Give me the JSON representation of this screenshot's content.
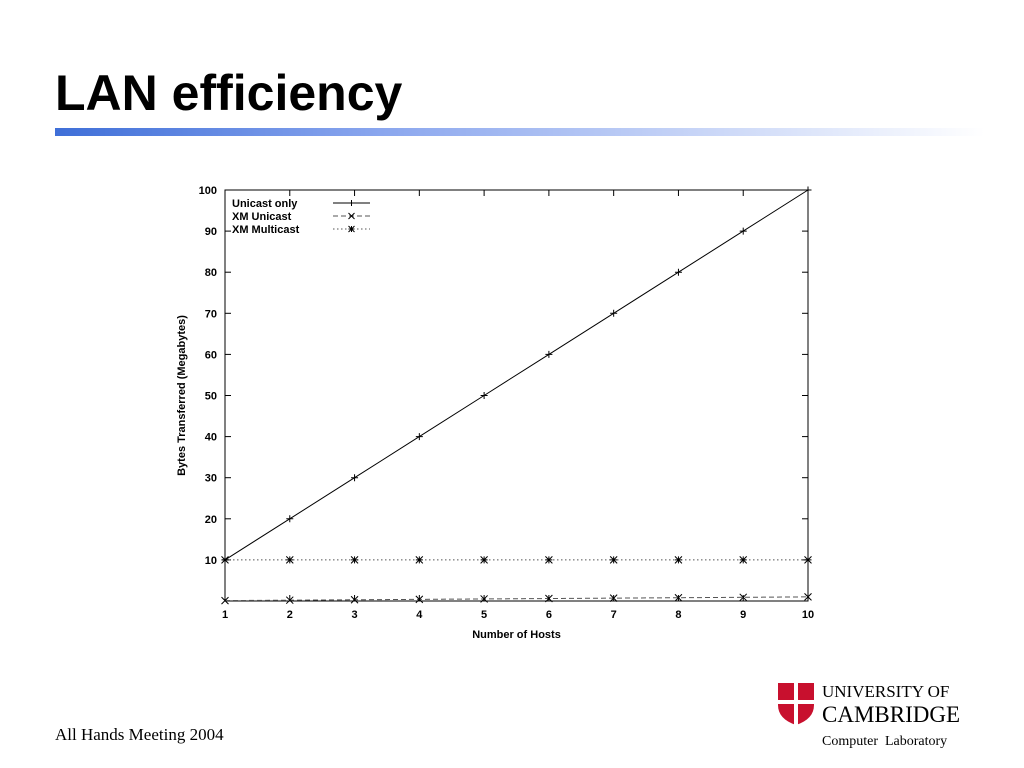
{
  "slide": {
    "title": "LAN efficiency",
    "footer": "All Hands Meeting 2004",
    "logo": [
      "UNIVERSITY OF",
      "CAMBRIDGE",
      "Computer  Laboratory"
    ]
  },
  "chart_data": {
    "type": "line",
    "x_label": "Number of Hosts",
    "y_label": "Bytes Transferred (Megabytes)",
    "x": [
      1,
      2,
      3,
      4,
      5,
      6,
      7,
      8,
      9,
      10
    ],
    "xlim": [
      1,
      10
    ],
    "xticks": [
      1,
      2,
      3,
      4,
      5,
      6,
      7,
      8,
      9,
      10
    ],
    "ylim": [
      0,
      100
    ],
    "yticks": [
      10,
      20,
      30,
      40,
      50,
      60,
      70,
      80,
      90,
      100
    ],
    "legend": "top-left",
    "series": [
      {
        "name": "Unicast only",
        "color": "#000000",
        "dash": "solid",
        "marker": "plus",
        "values": [
          10,
          20,
          30,
          40,
          50,
          60,
          70,
          80,
          90,
          100
        ]
      },
      {
        "name": "XM Unicast",
        "color": "#000000",
        "dash": "dashed",
        "marker": "cross",
        "values": [
          0.1,
          0.2,
          0.3,
          0.4,
          0.5,
          0.6,
          0.7,
          0.8,
          0.9,
          1
        ]
      },
      {
        "name": "XM Multicast",
        "color": "#000000",
        "dash": "dotted",
        "marker": "star",
        "values": [
          10,
          10,
          10,
          10,
          10,
          10,
          10,
          10,
          10,
          10
        ]
      }
    ]
  }
}
